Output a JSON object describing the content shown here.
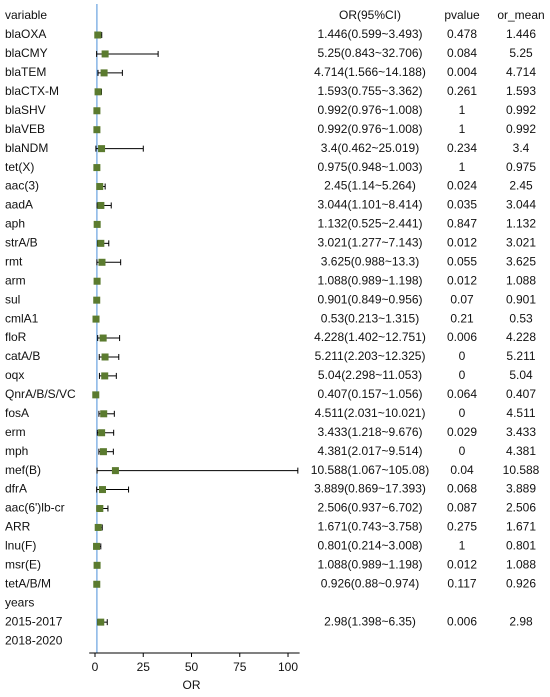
{
  "chart_data": {
    "type": "forest",
    "column_headers": [
      "variable",
      "OR(95%CI)",
      "pvalue",
      "or_mean"
    ],
    "categories": [
      "blaOXA",
      "blaCMY",
      "blaTEM",
      "blaCTX-M",
      "blaSHV",
      "blaVEB",
      "blaNDM",
      "tet(X)",
      "aac(3)",
      "aadA",
      "aph",
      "strA/B",
      "rmt",
      "arm",
      "sul",
      "cmlA1",
      "floR",
      "catA/B",
      "oqx",
      "QnrA/B/S/VC",
      "fosA",
      "erm",
      "mph",
      "mef(B)",
      "dfrA",
      "aac(6')lb-cr",
      "ARR",
      "lnu(F)",
      "msr(E)",
      "tetA/B/M",
      "years",
      "2015-2017",
      "2018-2020"
    ],
    "ci_labels": [
      "1.446(0.599~3.493)",
      "5.25(0.843~32.706)",
      "4.714(1.566~14.188)",
      "1.593(0.755~3.362)",
      "0.992(0.976~1.008)",
      "0.992(0.976~1.008)",
      "3.4(0.462~25.019)",
      "0.975(0.948~1.003)",
      "2.45(1.14~5.264)",
      "3.044(1.101~8.414)",
      "1.132(0.525~2.441)",
      "3.021(1.277~7.143)",
      "3.625(0.988~13.3)",
      "1.088(0.989~1.198)",
      "0.901(0.849~0.956)",
      "0.53(0.213~1.315)",
      "4.228(1.402~12.751)",
      "5.211(2.203~12.325)",
      "5.04(2.298~11.053)",
      "0.407(0.157~1.056)",
      "4.511(2.031~10.021)",
      "3.433(1.218~9.676)",
      "4.381(2.017~9.514)",
      "10.588(1.067~105.08)",
      "3.889(0.869~17.393)",
      "2.506(0.937~6.702)",
      "1.671(0.743~3.758)",
      "0.801(0.214~3.008)",
      "1.088(0.989~1.198)",
      "0.926(0.88~0.974)",
      null,
      "2.98(1.398~6.35)",
      null
    ],
    "pvalues": [
      0.478,
      0.084,
      0.004,
      0.261,
      1,
      1,
      0.234,
      1,
      0.024,
      0.035,
      0.847,
      0.012,
      0.055,
      0.012,
      0.07,
      0.21,
      0.006,
      0,
      0,
      0.064,
      0,
      0.029,
      0,
      0.04,
      0.068,
      0.087,
      0.275,
      1,
      0.012,
      0.117,
      null,
      0.006,
      null
    ],
    "or_mean": [
      1.446,
      5.25,
      4.714,
      1.593,
      0.992,
      0.992,
      3.4,
      0.975,
      2.45,
      3.044,
      1.132,
      3.021,
      3.625,
      1.088,
      0.901,
      0.53,
      4.228,
      5.211,
      5.04,
      0.407,
      4.511,
      3.433,
      4.381,
      10.588,
      3.889,
      2.506,
      1.671,
      0.801,
      1.088,
      0.926,
      null,
      2.98,
      null
    ],
    "lower": [
      0.599,
      0.843,
      1.566,
      0.755,
      0.976,
      0.976,
      0.462,
      0.948,
      1.14,
      1.101,
      0.525,
      1.277,
      0.988,
      0.989,
      0.849,
      0.213,
      1.402,
      2.203,
      2.298,
      0.157,
      2.031,
      1.218,
      2.017,
      1.067,
      0.869,
      0.937,
      0.743,
      0.214,
      0.989,
      0.88,
      null,
      1.398,
      null
    ],
    "upper": [
      3.493,
      32.706,
      14.188,
      3.362,
      1.008,
      1.008,
      25.019,
      1.003,
      5.264,
      8.414,
      2.441,
      7.143,
      13.3,
      1.198,
      0.956,
      1.315,
      12.751,
      12.325,
      11.053,
      1.056,
      10.021,
      9.676,
      9.514,
      105.08,
      17.393,
      6.702,
      3.758,
      3.008,
      1.198,
      0.974,
      null,
      6.35,
      null
    ],
    "reference_line": 1,
    "marker_color": "#5b7b2f",
    "reference_color": "#4a90d9",
    "xlabel": "OR",
    "xlim": [
      -3,
      106
    ],
    "xticks": [
      0,
      25,
      50,
      75,
      100
    ]
  }
}
